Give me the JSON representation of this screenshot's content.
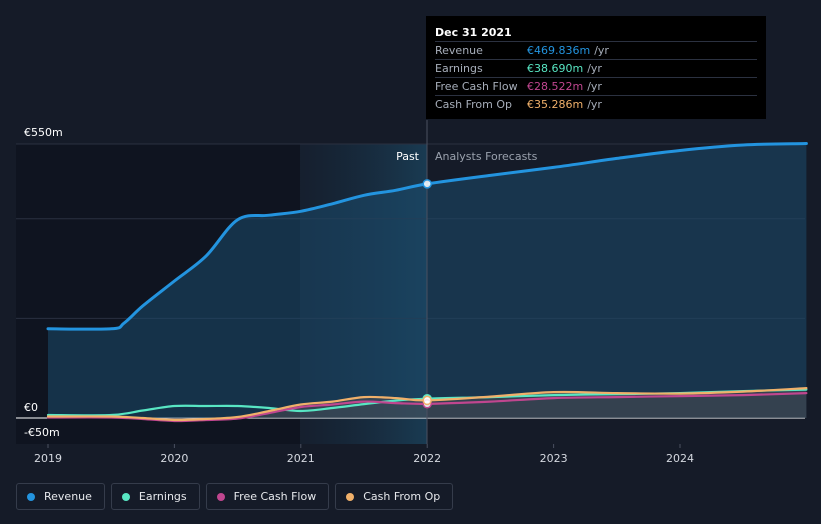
{
  "chart_data": {
    "type": "line",
    "title": "",
    "xlabel": "",
    "ylabel": "",
    "x_ticks": [
      "2019",
      "2020",
      "2021",
      "2022",
      "2023",
      "2024"
    ],
    "y_labels": [
      "€550m",
      "€0",
      "-€50m"
    ],
    "ylim": [
      -50,
      550
    ],
    "xlim": [
      2019.0,
      2025.0
    ],
    "past_label": "Past",
    "forecast_label": "Analysts Forecasts",
    "divider_x": 2022.0,
    "series": [
      {
        "name": "Revenue",
        "color": "#2394df",
        "points": [
          [
            2019.0,
            179
          ],
          [
            2019.5,
            179
          ],
          [
            2019.6,
            190
          ],
          [
            2019.75,
            225
          ],
          [
            2020.0,
            275
          ],
          [
            2020.25,
            325
          ],
          [
            2020.5,
            398
          ],
          [
            2020.75,
            407
          ],
          [
            2021.0,
            415
          ],
          [
            2021.25,
            430
          ],
          [
            2021.5,
            447
          ],
          [
            2021.75,
            457
          ],
          [
            2022.0,
            470
          ],
          [
            2022.5,
            487
          ],
          [
            2023.0,
            503
          ],
          [
            2023.5,
            521
          ],
          [
            2024.0,
            537
          ],
          [
            2024.5,
            548
          ],
          [
            2025.0,
            551
          ]
        ]
      },
      {
        "name": "Earnings",
        "color": "#58e6c3",
        "points": [
          [
            2019.0,
            6
          ],
          [
            2019.5,
            6
          ],
          [
            2019.75,
            15
          ],
          [
            2020.0,
            24
          ],
          [
            2020.25,
            24
          ],
          [
            2020.5,
            24
          ],
          [
            2020.75,
            20
          ],
          [
            2021.0,
            14
          ],
          [
            2021.25,
            20
          ],
          [
            2021.5,
            28
          ],
          [
            2021.75,
            35
          ],
          [
            2022.0,
            38.7
          ],
          [
            2022.5,
            42
          ],
          [
            2023.0,
            46
          ],
          [
            2023.5,
            48
          ],
          [
            2024.0,
            50
          ],
          [
            2024.5,
            54
          ],
          [
            2025.0,
            57
          ]
        ]
      },
      {
        "name": "Free Cash Flow",
        "color": "#c0468f",
        "points": [
          [
            2019.0,
            1
          ],
          [
            2019.5,
            1
          ],
          [
            2019.75,
            -2
          ],
          [
            2020.0,
            -6
          ],
          [
            2020.25,
            -4
          ],
          [
            2020.5,
            -1
          ],
          [
            2020.75,
            10
          ],
          [
            2021.0,
            22
          ],
          [
            2021.25,
            27
          ],
          [
            2021.5,
            33
          ],
          [
            2021.75,
            30
          ],
          [
            2022.0,
            28.5
          ],
          [
            2022.5,
            33
          ],
          [
            2023.0,
            40
          ],
          [
            2023.5,
            42
          ],
          [
            2024.0,
            44
          ],
          [
            2024.5,
            46
          ],
          [
            2025.0,
            50
          ]
        ]
      },
      {
        "name": "Cash From Op",
        "color": "#f0b06a",
        "points": [
          [
            2019.0,
            3
          ],
          [
            2019.5,
            3
          ],
          [
            2019.75,
            0
          ],
          [
            2020.0,
            -4
          ],
          [
            2020.25,
            -2
          ],
          [
            2020.5,
            2
          ],
          [
            2020.75,
            14
          ],
          [
            2021.0,
            27
          ],
          [
            2021.25,
            33
          ],
          [
            2021.5,
            42
          ],
          [
            2021.75,
            40
          ],
          [
            2022.0,
            35.3
          ],
          [
            2022.5,
            43
          ],
          [
            2023.0,
            52
          ],
          [
            2023.5,
            50
          ],
          [
            2024.0,
            49
          ],
          [
            2024.5,
            53
          ],
          [
            2025.0,
            60
          ]
        ]
      }
    ]
  },
  "tooltip": {
    "date": "Dec 31 2021",
    "unit": "/yr",
    "rows": [
      {
        "label": "Revenue",
        "value": "€469.836m",
        "color": "#2394df"
      },
      {
        "label": "Earnings",
        "value": "€38.690m",
        "color": "#58e6c3"
      },
      {
        "label": "Free Cash Flow",
        "value": "€28.522m",
        "color": "#c0468f"
      },
      {
        "label": "Cash From Op",
        "value": "€35.286m",
        "color": "#f0b06a"
      }
    ]
  },
  "legend": [
    {
      "label": "Revenue",
      "color": "#2394df"
    },
    {
      "label": "Earnings",
      "color": "#58e6c3"
    },
    {
      "label": "Free Cash Flow",
      "color": "#c0468f"
    },
    {
      "label": "Cash From Op",
      "color": "#f0b06a"
    }
  ]
}
